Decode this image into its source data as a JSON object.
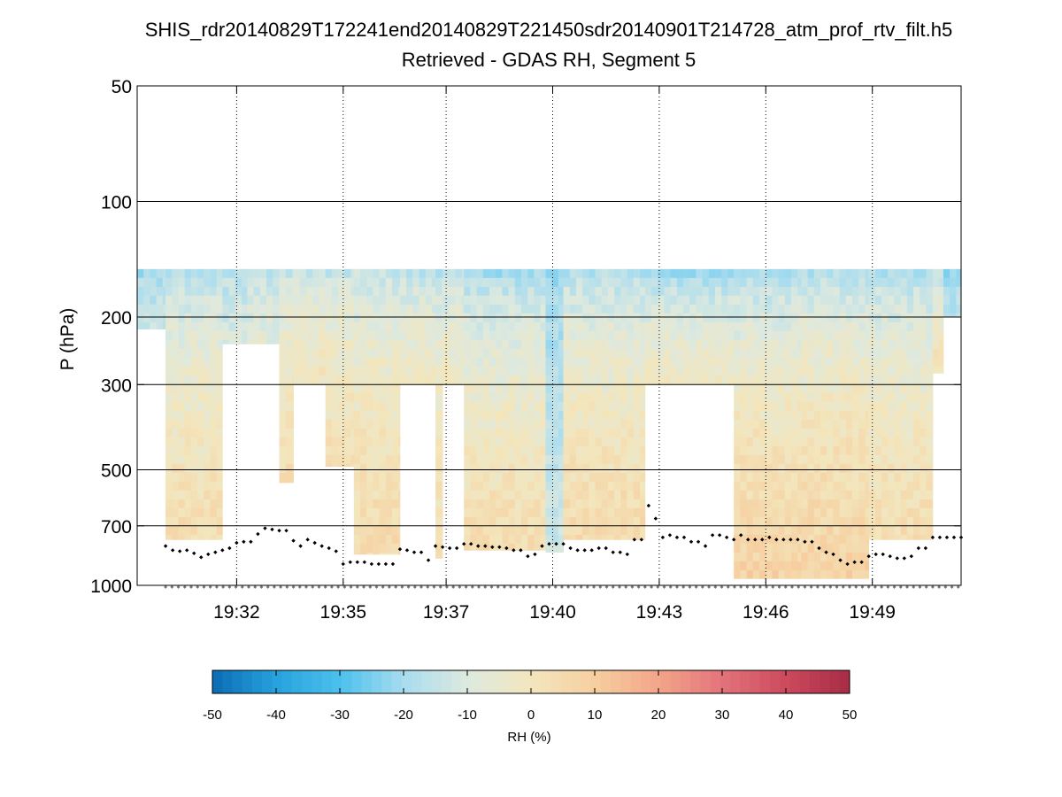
{
  "chart_data": {
    "type": "heatmap",
    "title_line1": "SHIS_rdr20140829T172241end20140829T221450sdr20140901T214728_atm_prof_rtv_filt.h5",
    "title_line2": "Retrieved - GDAS RH, Segment 5",
    "ylabel": "P (hPa)",
    "yscale": "log",
    "ylim": [
      50,
      1000
    ],
    "yticks": [
      50,
      100,
      200,
      300,
      500,
      700,
      1000
    ],
    "ytick_labels": [
      "50",
      "100",
      "200",
      "300",
      "500",
      "700",
      "1000"
    ],
    "xlim_minutes": [
      29.2,
      52.4
    ],
    "xticks_minutes": [
      32,
      35,
      37.9,
      40.9,
      43.9,
      46.9,
      49.9
    ],
    "xtick_labels": [
      "19:32",
      "19:35",
      "19:37",
      "19:40",
      "19:43",
      "19:46",
      "19:49"
    ],
    "grid": true,
    "colorbar": {
      "label": "RH (%)",
      "range": [
        -50,
        50
      ],
      "ticks": [
        -50,
        -40,
        -30,
        -20,
        -10,
        0,
        10,
        20,
        30,
        40,
        50
      ],
      "tick_labels": [
        "-50",
        "-40",
        "-30",
        "-20",
        "-10",
        "0",
        "10",
        "20",
        "30",
        "40",
        "50"
      ],
      "colors": [
        "#0b6cb4",
        "#27a2dd",
        "#4cc0ec",
        "#a8dcef",
        "#dde9df",
        "#f3e6bd",
        "#f6cfa0",
        "#f3a58a",
        "#e2737a",
        "#cc4a5d",
        "#a62c44"
      ]
    },
    "profile_top_hpa": 150,
    "profile_segments": [
      {
        "start": 29.2,
        "end": 30.0,
        "top": 150,
        "bottom": 215,
        "rh": [
          -22,
          -14
        ]
      },
      {
        "start": 30.0,
        "end": 31.6,
        "top": 150,
        "bottom": 760,
        "rh": [
          -22,
          4
        ]
      },
      {
        "start": 31.6,
        "end": 32.3,
        "top": 150,
        "bottom": 235,
        "rh": [
          -20,
          -10
        ]
      },
      {
        "start": 32.3,
        "end": 33.2,
        "top": 150,
        "bottom": 235,
        "rh": [
          -18,
          -8
        ]
      },
      {
        "start": 33.2,
        "end": 33.6,
        "top": 150,
        "bottom": 540,
        "rh": [
          -18,
          4
        ]
      },
      {
        "start": 33.6,
        "end": 34.5,
        "top": 150,
        "bottom": 300,
        "rh": [
          -18,
          0
        ]
      },
      {
        "start": 34.5,
        "end": 35.3,
        "top": 150,
        "bottom": 490,
        "rh": [
          -18,
          3
        ]
      },
      {
        "start": 35.3,
        "end": 36.6,
        "top": 150,
        "bottom": 830,
        "rh": [
          -18,
          5
        ]
      },
      {
        "start": 36.6,
        "end": 37.6,
        "top": 150,
        "bottom": 300,
        "rh": [
          -20,
          -2
        ]
      },
      {
        "start": 37.6,
        "end": 37.8,
        "top": 150,
        "bottom": 850,
        "rh": [
          -20,
          4
        ]
      },
      {
        "start": 37.8,
        "end": 38.4,
        "top": 150,
        "bottom": 300,
        "rh": [
          -20,
          -2
        ]
      },
      {
        "start": 38.4,
        "end": 40.7,
        "top": 150,
        "bottom": 810,
        "rh": [
          -24,
          4
        ]
      },
      {
        "start": 40.7,
        "end": 41.2,
        "top": 150,
        "bottom": 820,
        "rh": [
          -24,
          -14
        ]
      },
      {
        "start": 41.2,
        "end": 43.5,
        "top": 150,
        "bottom": 760,
        "rh": [
          -22,
          5
        ]
      },
      {
        "start": 43.5,
        "end": 46.0,
        "top": 150,
        "bottom": 300,
        "rh": [
          -26,
          -2
        ]
      },
      {
        "start": 46.0,
        "end": 47.9,
        "top": 150,
        "bottom": 960,
        "rh": [
          -24,
          8
        ]
      },
      {
        "start": 47.9,
        "end": 49.8,
        "top": 150,
        "bottom": 960,
        "rh": [
          -22,
          8
        ]
      },
      {
        "start": 49.8,
        "end": 51.6,
        "top": 150,
        "bottom": 760,
        "rh": [
          -22,
          4
        ]
      },
      {
        "start": 51.6,
        "end": 51.9,
        "top": 150,
        "bottom": 280,
        "rh": [
          -22,
          2
        ]
      },
      {
        "start": 51.9,
        "end": 52.4,
        "top": 150,
        "bottom": 200,
        "rh": [
          -24,
          -16
        ]
      }
    ],
    "cloud_top_points": {
      "x": [
        30.0,
        30.2,
        30.4,
        30.6,
        30.8,
        31.0,
        31.2,
        31.4,
        31.6,
        31.8,
        32.0,
        32.2,
        32.4,
        32.6,
        32.8,
        33.0,
        33.2,
        33.4,
        33.6,
        33.8,
        34.0,
        34.2,
        34.4,
        34.6,
        34.8,
        35.0,
        35.2,
        35.4,
        35.6,
        35.8,
        36.0,
        36.2,
        36.4,
        36.6,
        36.8,
        37.0,
        37.2,
        37.4,
        37.6,
        37.8,
        38.0,
        38.2,
        38.4,
        38.6,
        38.8,
        39.0,
        39.2,
        39.4,
        39.6,
        39.8,
        40.0,
        40.2,
        40.4,
        40.6,
        40.8,
        41.0,
        41.2,
        41.4,
        41.6,
        41.8,
        42.0,
        42.2,
        42.4,
        42.6,
        42.8,
        43.0,
        43.2,
        43.4,
        43.6,
        43.8,
        44.0,
        44.2,
        44.4,
        44.6,
        44.8,
        45.0,
        45.2,
        45.4,
        45.6,
        45.8,
        46.0,
        46.2,
        46.4,
        46.6,
        46.8,
        47.0,
        47.2,
        47.4,
        47.6,
        47.8,
        48.0,
        48.2,
        48.4,
        48.6,
        48.8,
        49.0,
        49.2,
        49.4,
        49.6,
        49.8,
        50.0,
        50.2,
        50.4,
        50.6,
        50.8,
        51.0,
        51.2,
        51.4,
        51.6,
        51.8,
        52.0,
        52.2,
        52.4
      ],
      "p": [
        790,
        810,
        815,
        810,
        825,
        845,
        830,
        820,
        810,
        800,
        775,
        770,
        770,
        735,
        710,
        715,
        720,
        720,
        765,
        790,
        760,
        775,
        790,
        800,
        815,
        880,
        870,
        870,
        870,
        880,
        880,
        880,
        880,
        805,
        810,
        820,
        820,
        860,
        790,
        795,
        800,
        800,
        780,
        780,
        790,
        790,
        795,
        795,
        800,
        810,
        810,
        840,
        830,
        790,
        780,
        780,
        780,
        800,
        810,
        810,
        810,
        800,
        800,
        820,
        820,
        830,
        760,
        760,
        620,
        670,
        750,
        740,
        750,
        750,
        770,
        770,
        790,
        740,
        740,
        750,
        760,
        740,
        760,
        760,
        760,
        750,
        760,
        760,
        760,
        760,
        770,
        770,
        800,
        820,
        830,
        860,
        880,
        870,
        870,
        840,
        830,
        830,
        840,
        850,
        850,
        840,
        800,
        800,
        750,
        750,
        750,
        750,
        750
      ]
    },
    "surface_points": {
      "pressure": 1010,
      "x_start": 30.0,
      "x_end": 52.4,
      "step": 0.18
    }
  }
}
